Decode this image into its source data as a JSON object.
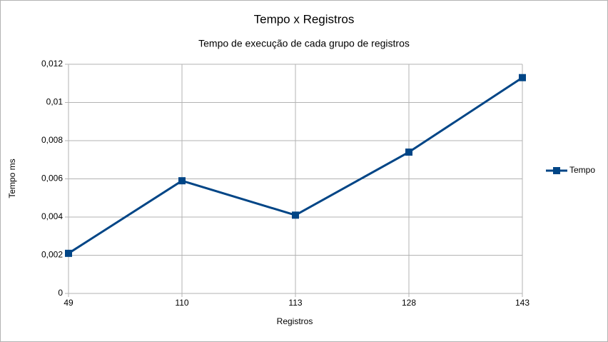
{
  "chart_data": {
    "type": "line",
    "title": "Tempo x Registros",
    "subtitle": "Tempo de execução de cada grupo de registros",
    "x_label": "Registros",
    "y_label": "Tempo ms",
    "categories": [
      "49",
      "110",
      "113",
      "128",
      "143"
    ],
    "series": [
      {
        "name": "Tempo",
        "color": "#004586",
        "values": [
          0.0021,
          0.0059,
          0.0041,
          0.0074,
          0.0113
        ]
      }
    ],
    "ylim": [
      0,
      0.012
    ],
    "yticks": [
      0,
      {
        "value": 0.002,
        "label": "0,002"
      },
      {
        "value": 0.004,
        "label": "0,004"
      },
      {
        "value": 0.006,
        "label": "0,006"
      },
      {
        "value": 0.008,
        "label": "0,008"
      },
      {
        "value": 0.01,
        "label": "0,01"
      },
      {
        "value": 0.012,
        "label": "0,012"
      }
    ],
    "grid": true,
    "legend": "right"
  }
}
